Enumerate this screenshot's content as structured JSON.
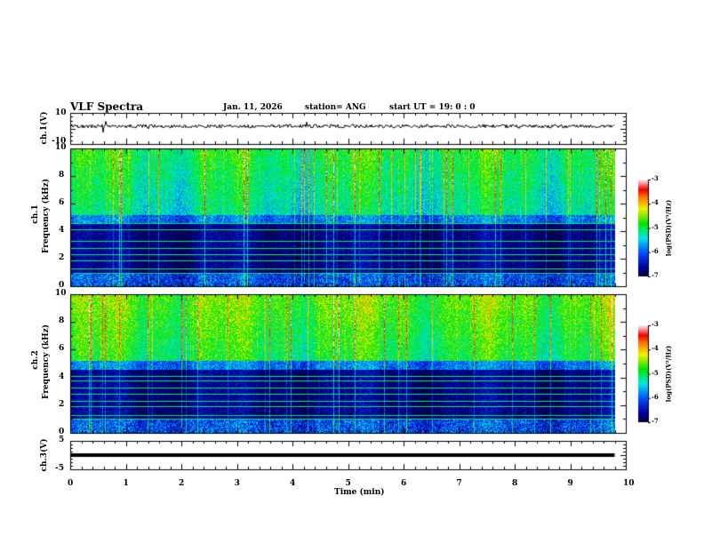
{
  "header": {
    "title": "VLF Spectra",
    "date": "Jan. 11, 2026",
    "station": "station= ANG",
    "start": "start  UT =   19: 0  : 0"
  },
  "colors": {
    "trace": "#000000"
  },
  "chart_data": [
    {
      "type": "line",
      "ylabel": "ch.1(V)",
      "ylim": [
        -10,
        10
      ],
      "yticks": [
        "10",
        "-10"
      ],
      "description_series": "noise around 0 V",
      "baseline": 0
    },
    {
      "type": "heatmap",
      "ylabel": "ch.1\nFrequency (kHz)",
      "ylabel1": "ch.1",
      "ylabel2": "Frequency (kHz)",
      "ylim": [
        0,
        10
      ],
      "yticks": [
        "0",
        "2",
        "4",
        "6",
        "8",
        "10"
      ],
      "colorbar": {
        "label": "log(PSD)(V²/Hz)",
        "range": [
          -7,
          -3
        ],
        "ticks": [
          "-3",
          "-4",
          "-5",
          "-6",
          "-7"
        ]
      },
      "lines_khz": [
        1.0,
        1.3,
        1.9,
        2.3,
        2.8,
        3.3,
        4.1,
        4.6
      ]
    },
    {
      "type": "heatmap",
      "ylabel1": "ch.2",
      "ylabel2": "Frequency (kHz)",
      "ylim": [
        0,
        10
      ],
      "yticks": [
        "0",
        "2",
        "4",
        "6",
        "8",
        "10"
      ],
      "colorbar": {
        "label": "log(PSD)(V²/Hz)",
        "range": [
          -7,
          -3
        ],
        "ticks": [
          "-3",
          "-4",
          "-5",
          "-6",
          "-7"
        ]
      },
      "lines_khz": [
        1.0,
        1.3,
        1.9,
        2.3,
        2.8,
        3.3,
        3.8,
        4.1
      ]
    },
    {
      "type": "line",
      "ylabel": "ch.3(V)",
      "ylim": [
        -5,
        5
      ],
      "yticks": [
        "5",
        "-5"
      ],
      "baseline": 0
    }
  ],
  "xaxis": {
    "label": "Time (min)",
    "xlim": [
      0,
      10
    ],
    "ticks": [
      "0",
      "1",
      "2",
      "3",
      "4",
      "5",
      "6",
      "7",
      "8",
      "9",
      "10"
    ],
    "data_end": 9.8
  }
}
